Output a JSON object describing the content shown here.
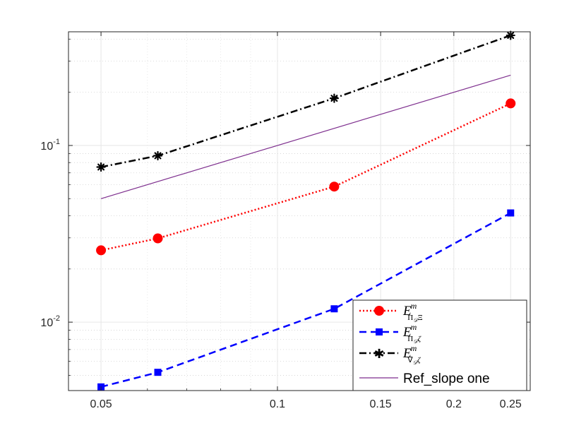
{
  "chart_data": {
    "type": "line",
    "xscale": "log",
    "yscale": "log",
    "xlim": [
      0.044,
      0.27
    ],
    "ylim": [
      0.0041,
      0.44
    ],
    "grid": true,
    "minor_grid": true,
    "legend_position": "bottom-right",
    "title": "",
    "xlabel": "",
    "ylabel": "",
    "x_ticks": [
      {
        "value": 0.05,
        "label": "0.05"
      },
      {
        "value": 0.1,
        "label": "0.1"
      },
      {
        "value": 0.15,
        "label": "0.15"
      },
      {
        "value": 0.2,
        "label": "0.2"
      },
      {
        "value": 0.25,
        "label": "0.25"
      }
    ],
    "y_ticks": [
      {
        "value": 0.01,
        "base": "10",
        "exp": "-2"
      },
      {
        "value": 0.1,
        "base": "10",
        "exp": "-1"
      }
    ],
    "series": [
      {
        "key": "pi_xi",
        "color": "#ff0000",
        "line_style": "dotted",
        "marker": "circle",
        "x": [
          0.05,
          0.0625,
          0.125,
          0.25
        ],
        "y": [
          0.0255,
          0.0298,
          0.0585,
          0.173
        ]
      },
      {
        "key": "pi_zeta",
        "color": "#0000ff",
        "line_style": "dashed",
        "marker": "square",
        "x": [
          0.05,
          0.0625,
          0.125,
          0.25
        ],
        "y": [
          0.0043,
          0.0052,
          0.0119,
          0.0415
        ]
      },
      {
        "key": "grad_zeta",
        "color": "#000000",
        "line_style": "dashdot",
        "marker": "asterisk",
        "x": [
          0.05,
          0.0625,
          0.125,
          0.25
        ],
        "y": [
          0.0755,
          0.0875,
          0.185,
          0.42
        ]
      },
      {
        "key": "ref",
        "name": "Ref_slope one",
        "color": "#7e2f8e",
        "line_style": "solid",
        "marker": "none",
        "x": [
          0.05,
          0.25
        ],
        "y": [
          0.05,
          0.25
        ]
      }
    ]
  }
}
